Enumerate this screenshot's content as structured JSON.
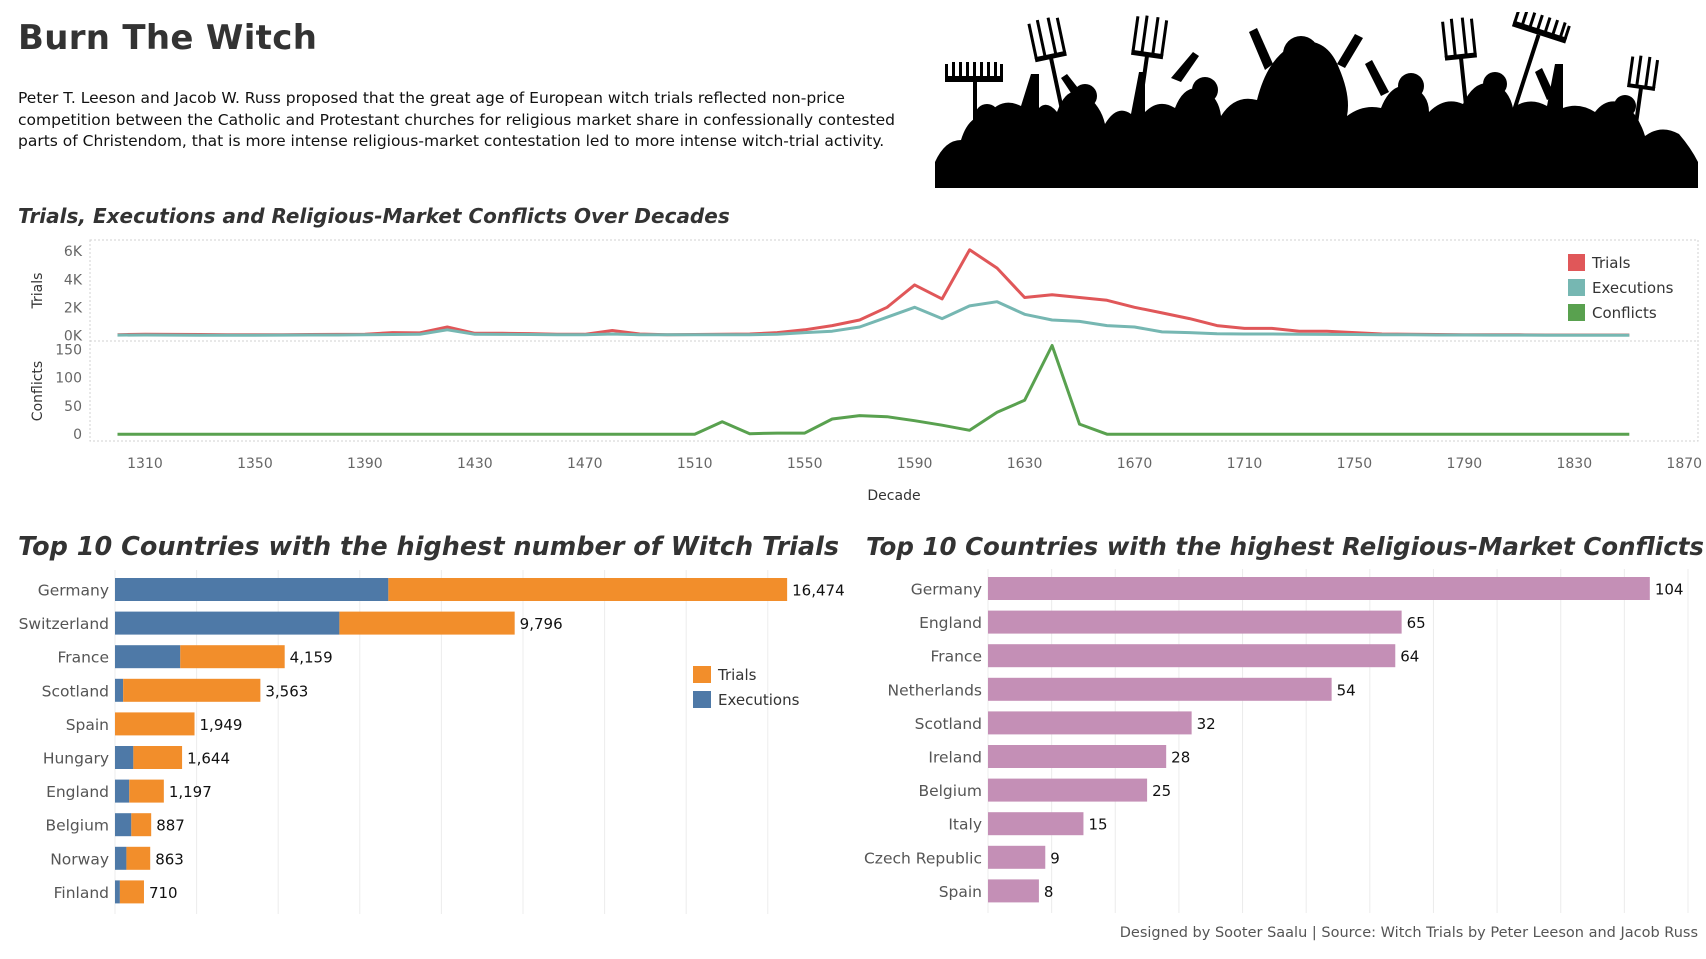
{
  "header": {
    "title": "Burn The Witch",
    "intro": "Peter T. Leeson and Jacob W. Russ proposed that the great age of European witch trials reflected non-price competition between the Catholic and Protestant churches for religious market share in confessionally contested parts of Christendom, that is more intense religious-market contestation led to more intense witch-trial activity."
  },
  "banner": {
    "icon": "crowd-with-pitchforks-icon",
    "color": "#000000"
  },
  "footer": {
    "text": "Designed by Sooter Saalu  | Source: Witch Trials by Peter Leeson and Jacob Russ"
  },
  "chart_data": [
    {
      "id": "timeline",
      "type": "line",
      "title": "Trials, Executions and Religious-Market Conflicts Over Decades",
      "xlabel": "Decade",
      "xticks": [
        1310,
        1350,
        1390,
        1430,
        1470,
        1510,
        1550,
        1590,
        1630,
        1670,
        1710,
        1750,
        1790,
        1830,
        1870
      ],
      "xlim": [
        1290,
        1875
      ],
      "x": [
        1300,
        1310,
        1320,
        1330,
        1340,
        1350,
        1360,
        1370,
        1380,
        1390,
        1400,
        1410,
        1420,
        1430,
        1440,
        1450,
        1460,
        1470,
        1480,
        1490,
        1500,
        1510,
        1520,
        1530,
        1540,
        1550,
        1560,
        1570,
        1580,
        1590,
        1600,
        1610,
        1620,
        1630,
        1640,
        1650,
        1660,
        1670,
        1680,
        1690,
        1700,
        1710,
        1720,
        1730,
        1740,
        1750,
        1760,
        1770,
        1780,
        1790,
        1800,
        1810,
        1820,
        1830,
        1840,
        1850
      ],
      "panels": [
        {
          "ylabel": "Trials",
          "yticks": [
            0,
            2000,
            4000,
            6000
          ],
          "yticklabels": [
            "0K",
            "2K",
            "4K",
            "6K"
          ],
          "ylim": [
            -400,
            6800
          ],
          "series": [
            {
              "name": "Trials",
              "color": "#e05759",
              "values": [
                50,
                80,
                70,
                60,
                40,
                40,
                50,
                60,
                70,
                80,
                200,
                180,
                600,
                150,
                150,
                130,
                80,
                80,
                350,
                100,
                50,
                60,
                80,
                100,
                200,
                400,
                700,
                1100,
                2000,
                3600,
                2600,
                6100,
                4800,
                2700,
                2900,
                2700,
                2500,
                2000,
                1600,
                1200,
                700,
                500,
                500,
                300,
                300,
                200,
                100,
                80,
                60,
                50,
                50,
                40,
                30,
                30,
                30,
                30
              ]
            },
            {
              "name": "Executions",
              "color": "#76b7b2",
              "values": [
                20,
                30,
                20,
                15,
                15,
                15,
                20,
                25,
                30,
                40,
                60,
                80,
                400,
                80,
                70,
                60,
                40,
                40,
                100,
                50,
                40,
                40,
                40,
                50,
                80,
                200,
                300,
                600,
                1300,
                2000,
                1200,
                2100,
                2400,
                1500,
                1100,
                1000,
                700,
                600,
                250,
                200,
                120,
                100,
                100,
                80,
                70,
                60,
                50,
                40,
                30,
                25,
                20,
                20,
                15,
                15,
                10,
                10
              ]
            }
          ]
        },
        {
          "ylabel": "Conflicts",
          "yticks": [
            0,
            50,
            100,
            150
          ],
          "yticklabels": [
            "0",
            "50",
            "100",
            "150"
          ],
          "ylim": [
            -12,
            165
          ],
          "series": [
            {
              "name": "Conflicts",
              "color": "#59a14f",
              "values": [
                0,
                0,
                0,
                0,
                0,
                0,
                0,
                0,
                0,
                0,
                0,
                0,
                0,
                0,
                0,
                0,
                0,
                0,
                0,
                0,
                0,
                0,
                22,
                1,
                2,
                2,
                27,
                33,
                31,
                24,
                16,
                7,
                39,
                60,
                157,
                18,
                0,
                0,
                0,
                0,
                0,
                0,
                0,
                0,
                0,
                0,
                0,
                0,
                0,
                0,
                0,
                0,
                0,
                0,
                0,
                0
              ]
            }
          ]
        }
      ],
      "legend": [
        "Trials",
        "Executions",
        "Conflicts"
      ],
      "legend_position": "top-right",
      "grid": false
    },
    {
      "id": "trials-by-country",
      "type": "bar",
      "orientation": "horizontal",
      "stacked": true,
      "title": "Top 10 Countries with the highest number of Witch Trials",
      "categories": [
        "Germany",
        "Switzerland",
        "France",
        "Scotland",
        "Spain",
        "Hungary",
        "England",
        "Belgium",
        "Norway",
        "Finland"
      ],
      "series": [
        {
          "name": "Executions",
          "color": "#4e79a7",
          "values": [
            6700,
            5500,
            1600,
            200,
            0,
            450,
            350,
            400,
            280,
            120
          ]
        },
        {
          "name": "Trials",
          "color": "#f28e2b",
          "values": [
            9774,
            4296,
            2559,
            3363,
            1949,
            1194,
            847,
            487,
            583,
            590
          ]
        }
      ],
      "data_labels": [
        "16,474",
        "9,796",
        "4,159",
        "3,563",
        "1,949",
        "1,644",
        "1,197",
        "887",
        "863",
        "710"
      ],
      "xlim": [
        0,
        17500
      ],
      "legend": [
        "Trials",
        "Executions"
      ],
      "legend_position": "right",
      "grid": true
    },
    {
      "id": "conflicts-by-country",
      "type": "bar",
      "orientation": "horizontal",
      "title": "Top 10 Countries with the highest Religious-Market Conflicts",
      "categories": [
        "Germany",
        "England",
        "France",
        "Netherlands",
        "Scotland",
        "Ireland",
        "Belgium",
        "Italy",
        "Czech Republic",
        "Spain"
      ],
      "values": [
        104,
        65,
        64,
        54,
        32,
        28,
        25,
        15,
        9,
        8
      ],
      "data_labels": [
        "104",
        "65",
        "64",
        "54",
        "32",
        "28",
        "25",
        "15",
        "9",
        "8"
      ],
      "color": "#c48fb6",
      "xlim": [
        0,
        110
      ],
      "grid": true
    }
  ]
}
